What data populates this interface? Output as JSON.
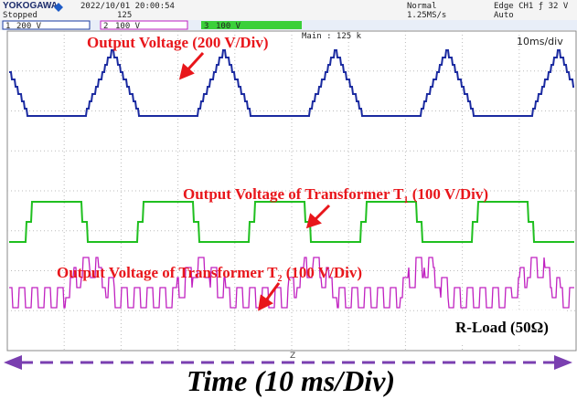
{
  "header": {
    "brand": "YOKOGAWA",
    "datetime": "2022/10/01 20:00:54",
    "status": "Stopped",
    "count": "125",
    "mode": "Normal",
    "sample_rate": "1.25MS/s",
    "trigger": "Edge CH1 ƒ 32 V",
    "trigger_mode": "Auto"
  },
  "channels": [
    {
      "id": "1",
      "scale": "200 V"
    },
    {
      "id": "2",
      "scale": "100 V"
    },
    {
      "id": "3",
      "scale": "100 V"
    }
  ],
  "screen": {
    "main": "Main : 125 k",
    "timebase": "10ms/div",
    "zoom_marker": "Z"
  },
  "annotations": {
    "ch1": "Output Voltage (200 V/Div)",
    "t1": {
      "text": "Output Voltage of Transformer T",
      "sub": "1",
      "suffix": " (100 V/Div)"
    },
    "t2": {
      "text": "Output Voltage of Transformer T",
      "sub": "2",
      "suffix": " (100 V/Div)"
    },
    "load": "R-Load (50Ω)"
  },
  "footer": {
    "axis_label": "Time (10 ms/Div)"
  }
}
